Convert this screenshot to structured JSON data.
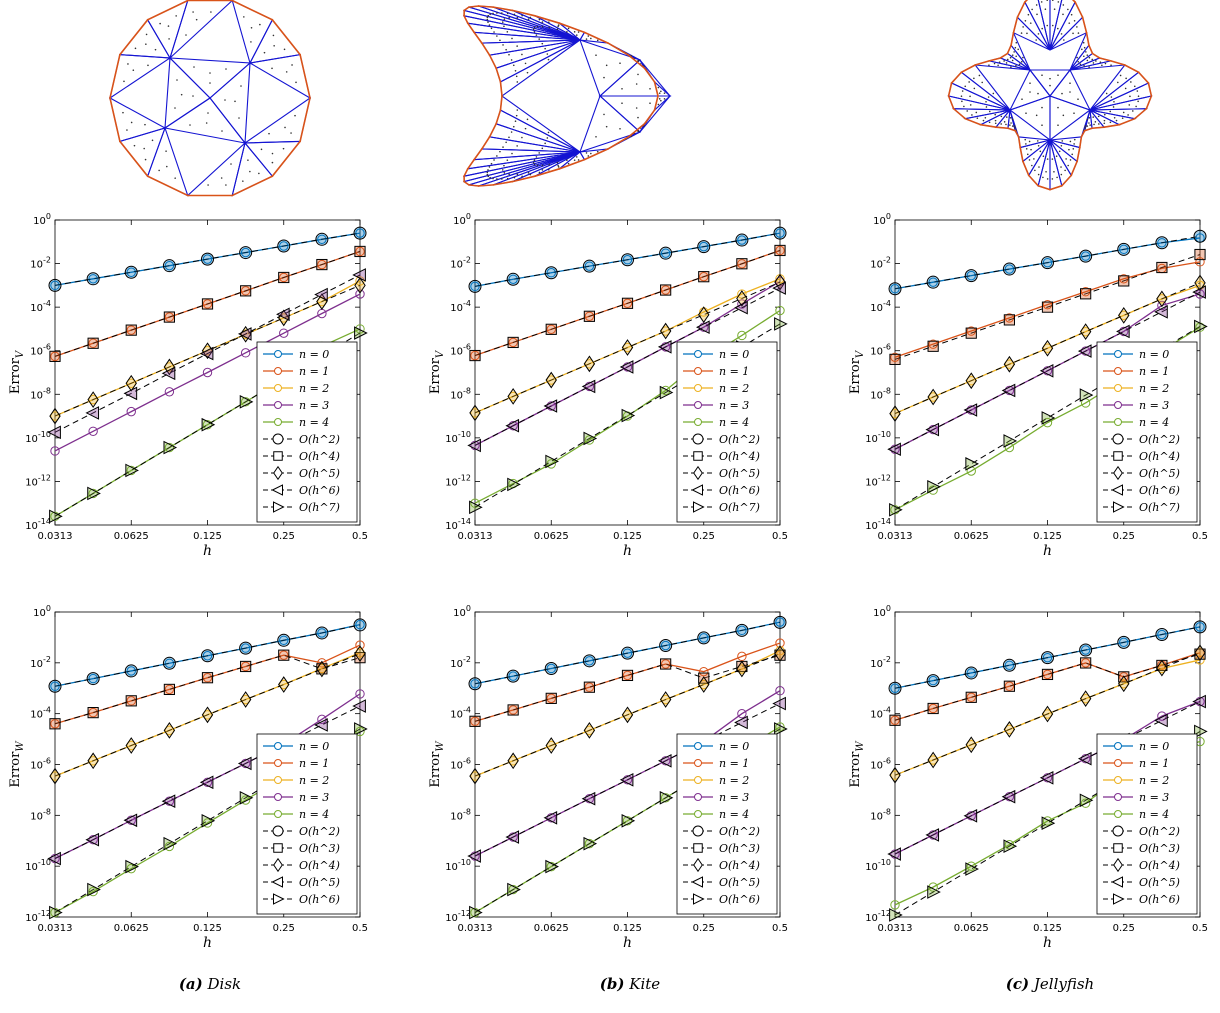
{
  "captions": [
    {
      "label": "(a)",
      "text": "Disk"
    },
    {
      "label": "(b)",
      "text": "Kite"
    },
    {
      "label": "(c)",
      "text": "Jellyfish"
    }
  ],
  "colors": {
    "series": [
      "#0072BD",
      "#D95319",
      "#EDB120",
      "#7E2F8E",
      "#77AC30"
    ],
    "reference": "#000000",
    "mesh_edges": "#1414d2",
    "mesh_boundary": "#d95319",
    "mesh_nodes": "#333333"
  },
  "legend_series": [
    "n = 0",
    "n = 1",
    "n = 2",
    "n = 3",
    "n = 4"
  ],
  "legend_refs_V": [
    "O(h^2)",
    "O(h^4)",
    "O(h^5)",
    "O(h^6)",
    "O(h^7)"
  ],
  "legend_refs_W": [
    "O(h^2)",
    "O(h^3)",
    "O(h^4)",
    "O(h^5)",
    "O(h^6)"
  ],
  "ref_markers": [
    "circle",
    "square",
    "diamond",
    "triangle-left",
    "triangle-right"
  ],
  "chart_data": [
    {
      "type": "line",
      "domain": "Disk",
      "panel": "V",
      "xlabel": "h",
      "ylabel": "Error",
      "ylabel_sub": "V",
      "xscale": "log2",
      "yscale": "log10",
      "xlim": [
        0.03125,
        0.5
      ],
      "ylim": [
        1e-14,
        1
      ],
      "xticks": [
        "0.0313",
        "0.0625",
        "0.125",
        "0.25",
        "0.5"
      ],
      "yticks_exp": [
        0,
        -2,
        -4,
        -6,
        -8,
        -10,
        -12,
        -14
      ],
      "x": [
        0.03125,
        0.0442,
        0.0625,
        0.0884,
        0.125,
        0.1768,
        0.25,
        0.3536,
        0.5
      ],
      "series": [
        {
          "values": [
            0.001,
            0.002,
            0.004,
            0.008,
            0.016,
            0.032,
            0.064,
            0.13,
            0.25
          ]
        },
        {
          "values": [
            5.5e-07,
            2.2e-06,
            8.8e-06,
            3.5e-05,
            0.00014,
            0.00056,
            0.0023,
            0.009,
            0.036
          ]
        },
        {
          "values": [
            1e-09,
            5.7e-09,
            3.2e-08,
            1.8e-07,
            1e-06,
            5.7e-06,
            3.2e-05,
            0.00018,
            0.0016
          ]
        },
        {
          "values": [
            2.5e-11,
            2e-10,
            1.6e-09,
            1.3e-08,
            1e-07,
            8e-07,
            6.4e-06,
            5.1e-05,
            0.0004
          ]
        },
        {
          "values": [
            2.5e-14,
            2.8e-13,
            3.2e-12,
            3.6e-11,
            4e-10,
            4.5e-09,
            5.1e-08,
            1.6e-06,
            1e-05
          ]
        }
      ],
      "reference": [
        {
          "values": [
            0.001,
            0.002,
            0.004,
            0.008,
            0.016,
            0.032,
            0.064,
            0.13,
            0.25
          ]
        },
        {
          "values": [
            5.5e-07,
            2.2e-06,
            8.8e-06,
            3.5e-05,
            0.00014,
            0.00056,
            0.0023,
            0.009,
            0.036
          ]
        },
        {
          "values": [
            1e-09,
            5.7e-09,
            3.2e-08,
            1.8e-07,
            1e-06,
            5.7e-06,
            3.2e-05,
            0.00018,
            0.001
          ]
        },
        {
          "values": [
            1.8e-10,
            1.4e-09,
            1.1e-08,
            9.2e-08,
            7.4e-07,
            5.9e-06,
            4.7e-05,
            0.00038,
            0.003
          ]
        },
        {
          "values": [
            2.5e-14,
            2.8e-13,
            3.2e-12,
            3.6e-11,
            4e-10,
            4.5e-09,
            5.1e-08,
            5.8e-07,
            6.5e-06
          ]
        }
      ],
      "legend": "lower-right"
    },
    {
      "type": "line",
      "domain": "Kite",
      "panel": "V",
      "xlabel": "h",
      "ylabel": "Error",
      "ylabel_sub": "V",
      "xscale": "log2",
      "yscale": "log10",
      "xlim": [
        0.03125,
        0.5
      ],
      "ylim": [
        1e-14,
        1
      ],
      "xticks": [
        "0.0313",
        "0.0625",
        "0.125",
        "0.25",
        "0.5"
      ],
      "yticks_exp": [
        0,
        -2,
        -4,
        -6,
        -8,
        -10,
        -12,
        -14
      ],
      "x": [
        0.03125,
        0.0442,
        0.0625,
        0.0884,
        0.125,
        0.1768,
        0.25,
        0.3536,
        0.5
      ],
      "series": [
        {
          "values": [
            0.0009,
            0.0019,
            0.0038,
            0.0076,
            0.015,
            0.03,
            0.06,
            0.12,
            0.25
          ]
        },
        {
          "values": [
            6e-07,
            2.4e-06,
            9.6e-06,
            3.8e-05,
            0.00015,
            0.00061,
            0.0025,
            0.0098,
            0.04
          ]
        },
        {
          "values": [
            1.4e-09,
            8e-09,
            4.5e-08,
            2.5e-07,
            1.4e-06,
            8e-06,
            6e-05,
            0.0004,
            0.002
          ]
        },
        {
          "values": [
            4.5e-11,
            3.6e-10,
            2.9e-09,
            2.3e-08,
            1.8e-07,
            1.5e-06,
            1.2e-05,
            0.00014,
            0.0015
          ]
        },
        {
          "values": [
            1e-13,
            8e-13,
            6.4e-12,
            8e-11,
            1e-09,
            1.5e-08,
            4e-07,
            5e-06,
            7e-05
          ]
        }
      ],
      "reference": [
        {
          "values": [
            0.0009,
            0.0019,
            0.0038,
            0.0076,
            0.015,
            0.03,
            0.06,
            0.12,
            0.25
          ]
        },
        {
          "values": [
            6e-07,
            2.4e-06,
            9.6e-06,
            3.8e-05,
            0.00015,
            0.00061,
            0.0025,
            0.0098,
            0.04
          ]
        },
        {
          "values": [
            1.4e-09,
            8e-09,
            4.5e-08,
            2.5e-07,
            1.4e-06,
            8e-06,
            4.5e-05,
            0.00025,
            0.0014
          ]
        },
        {
          "values": [
            4.5e-11,
            3.6e-10,
            2.9e-09,
            2.3e-08,
            1.8e-07,
            1.5e-06,
            1.2e-05,
            9.4e-05,
            0.00075
          ]
        },
        {
          "values": [
            6.5e-14,
            7.3e-13,
            8.3e-12,
            9.4e-11,
            1.06e-09,
            1.2e-08,
            1.35e-07,
            1.5e-06,
            1.7e-05
          ]
        }
      ],
      "legend": "lower-right"
    },
    {
      "type": "line",
      "domain": "Jellyfish",
      "panel": "V",
      "xlabel": "h",
      "ylabel": "Error",
      "ylabel_sub": "V",
      "xscale": "log2",
      "yscale": "log10",
      "xlim": [
        0.03125,
        0.5
      ],
      "ylim": [
        1e-14,
        1
      ],
      "xticks": [
        "0.0313",
        "0.0625",
        "0.125",
        "0.25",
        "0.5"
      ],
      "yticks_exp": [
        0,
        -2,
        -4,
        -6,
        -8,
        -10,
        -12,
        -14
      ],
      "x": [
        0.03125,
        0.0442,
        0.0625,
        0.0884,
        0.125,
        0.1768,
        0.25,
        0.3536,
        0.5
      ],
      "series": [
        {
          "values": [
            0.0007,
            0.0014,
            0.0028,
            0.0056,
            0.011,
            0.022,
            0.045,
            0.09,
            0.15
          ]
        },
        {
          "values": [
            5e-07,
            2e-06,
            8e-06,
            3.2e-05,
            0.00013,
            0.00051,
            0.002,
            0.006,
            0.012
          ]
        },
        {
          "values": [
            1.3e-09,
            7.5e-09,
            4.2e-08,
            2.4e-07,
            1.3e-06,
            7.5e-06,
            4.2e-05,
            0.00024,
            0.001
          ]
        },
        {
          "values": [
            3e-11,
            2.4e-10,
            1.9e-09,
            1.5e-08,
            1.2e-07,
            9.6e-07,
            7.7e-06,
            0.00012,
            0.0004
          ]
        },
        {
          "values": [
            5e-14,
            4e-13,
            3e-12,
            3.6e-11,
            5e-10,
            4e-09,
            5e-08,
            1e-06,
            1.2e-05
          ]
        }
      ],
      "reference": [
        {
          "values": [
            0.0007,
            0.0014,
            0.0028,
            0.0056,
            0.011,
            0.022,
            0.045,
            0.09,
            0.18
          ]
        },
        {
          "values": [
            4e-07,
            1.6e-06,
            6.4e-06,
            2.6e-05,
            0.0001,
            0.00041,
            0.0016,
            0.0066,
            0.026
          ]
        },
        {
          "values": [
            1.3e-09,
            7.5e-09,
            4.2e-08,
            2.4e-07,
            1.3e-06,
            7.5e-06,
            4.2e-05,
            0.00024,
            0.0013
          ]
        },
        {
          "values": [
            3e-11,
            2.4e-10,
            1.9e-09,
            1.5e-08,
            1.2e-07,
            9.6e-07,
            7.7e-06,
            6.1e-05,
            0.00049
          ]
        },
        {
          "values": [
            5e-14,
            5.7e-13,
            6.4e-12,
            7.2e-11,
            8.2e-10,
            9.2e-09,
            1e-07,
            1.2e-06,
            1.3e-05
          ]
        }
      ],
      "legend": "lower-right"
    },
    {
      "type": "line",
      "domain": "Disk",
      "panel": "W",
      "xlabel": "h",
      "ylabel": "Error",
      "ylabel_sub": "W",
      "xscale": "log2",
      "yscale": "log10",
      "xlim": [
        0.03125,
        0.5
      ],
      "ylim": [
        1e-12,
        1
      ],
      "xticks": [
        "0.0313",
        "0.0625",
        "0.125",
        "0.25",
        "0.5"
      ],
      "yticks_exp": [
        0,
        -2,
        -4,
        -6,
        -8,
        -10,
        -12
      ],
      "x": [
        0.03125,
        0.0442,
        0.0625,
        0.0884,
        0.125,
        0.1768,
        0.25,
        0.3536,
        0.5
      ],
      "series": [
        {
          "values": [
            0.0012,
            0.0024,
            0.0048,
            0.0096,
            0.019,
            0.038,
            0.077,
            0.15,
            0.32
          ]
        },
        {
          "values": [
            4e-05,
            0.00011,
            0.00032,
            0.0009,
            0.0026,
            0.0072,
            0.02,
            0.01,
            0.05
          ]
        },
        {
          "values": [
            3.5e-07,
            1.4e-06,
            5.6e-06,
            2.2e-05,
            9e-05,
            0.00036,
            0.0014,
            0.006,
            0.025
          ]
        },
        {
          "values": [
            2e-10,
            1.1e-09,
            6.4e-09,
            3.6e-08,
            2e-07,
            1.1e-06,
            6.4e-06,
            6e-05,
            0.0006
          ]
        },
        {
          "values": [
            1.5e-12,
            1e-11,
            8e-11,
            6e-10,
            5e-09,
            4e-08,
            3.2e-07,
            2.5e-06,
            2e-05
          ]
        }
      ],
      "reference": [
        {
          "values": [
            0.0012,
            0.0024,
            0.0048,
            0.0096,
            0.019,
            0.038,
            0.077,
            0.15,
            0.31
          ]
        },
        {
          "values": [
            4e-05,
            0.00011,
            0.00032,
            0.0009,
            0.0026,
            0.0072,
            0.02,
            0.0058,
            0.016
          ]
        },
        {
          "values": [
            3.5e-07,
            1.4e-06,
            5.6e-06,
            2.2e-05,
            9e-05,
            0.00036,
            0.0014,
            0.0057,
            0.023
          ]
        },
        {
          "values": [
            2e-10,
            1.1e-09,
            6.4e-09,
            3.6e-08,
            2e-07,
            1.1e-06,
            6.4e-06,
            3.6e-05,
            0.0002
          ]
        },
        {
          "values": [
            1.5e-12,
            1.2e-11,
            9.6e-11,
            7.7e-10,
            6.1e-09,
            4.9e-08,
            3.9e-07,
            3.1e-06,
            2.5e-05
          ]
        }
      ],
      "legend": "lower-right"
    },
    {
      "type": "line",
      "domain": "Kite",
      "panel": "W",
      "xlabel": "h",
      "ylabel": "Error",
      "ylabel_sub": "W",
      "xscale": "log2",
      "yscale": "log10",
      "xlim": [
        0.03125,
        0.5
      ],
      "ylim": [
        1e-12,
        1
      ],
      "xticks": [
        "0.0313",
        "0.0625",
        "0.125",
        "0.25",
        "0.5"
      ],
      "yticks_exp": [
        0,
        -2,
        -4,
        -6,
        -8,
        -10,
        -12
      ],
      "x": [
        0.03125,
        0.0442,
        0.0625,
        0.0884,
        0.125,
        0.1768,
        0.25,
        0.3536,
        0.5
      ],
      "series": [
        {
          "values": [
            0.0015,
            0.003,
            0.006,
            0.012,
            0.024,
            0.048,
            0.096,
            0.19,
            0.4
          ]
        },
        {
          "values": [
            5e-05,
            0.00014,
            0.0004,
            0.0011,
            0.0032,
            0.009,
            0.0045,
            0.018,
            0.06
          ]
        },
        {
          "values": [
            3.5e-07,
            1.4e-06,
            5.6e-06,
            2.2e-05,
            9e-05,
            0.00036,
            0.0014,
            0.0057,
            0.03
          ]
        },
        {
          "values": [
            2.5e-10,
            1.4e-09,
            8e-09,
            4.5e-08,
            2.5e-07,
            1.4e-06,
            8e-06,
            0.0001,
            0.0008
          ]
        },
        {
          "values": [
            1.5e-12,
            1.2e-11,
            9.6e-11,
            7.7e-10,
            6.1e-09,
            4.9e-08,
            3.9e-07,
            4e-06,
            3e-05
          ]
        }
      ],
      "reference": [
        {
          "values": [
            0.0015,
            0.003,
            0.006,
            0.012,
            0.024,
            0.048,
            0.096,
            0.19,
            0.39
          ]
        },
        {
          "values": [
            5e-05,
            0.00014,
            0.0004,
            0.0011,
            0.0032,
            0.009,
            0.0025,
            0.0072,
            0.02
          ]
        },
        {
          "values": [
            3.5e-07,
            1.4e-06,
            5.6e-06,
            2.2e-05,
            9e-05,
            0.00036,
            0.0014,
            0.0057,
            0.023
          ]
        },
        {
          "values": [
            2.5e-10,
            1.4e-09,
            8e-09,
            4.5e-08,
            2.5e-07,
            1.4e-06,
            8e-06,
            4.5e-05,
            0.00025
          ]
        },
        {
          "values": [
            1.5e-12,
            1.2e-11,
            9.6e-11,
            7.7e-10,
            6.1e-09,
            4.9e-08,
            3.9e-07,
            3.1e-06,
            2.5e-05
          ]
        }
      ],
      "legend": "lower-right"
    },
    {
      "type": "line",
      "domain": "Jellyfish",
      "panel": "W",
      "xlabel": "h",
      "ylabel": "Error",
      "ylabel_sub": "W",
      "xscale": "log2",
      "yscale": "log10",
      "xlim": [
        0.03125,
        0.5
      ],
      "ylim": [
        1e-12,
        1
      ],
      "xticks": [
        "0.0313",
        "0.0625",
        "0.125",
        "0.25",
        "0.5"
      ],
      "yticks_exp": [
        0,
        -2,
        -4,
        -6,
        -8,
        -10,
        -12
      ],
      "x": [
        0.03125,
        0.0442,
        0.0625,
        0.0884,
        0.125,
        0.1768,
        0.25,
        0.3536,
        0.5
      ],
      "series": [
        {
          "values": [
            0.001,
            0.002,
            0.004,
            0.008,
            0.016,
            0.032,
            0.064,
            0.13,
            0.26
          ]
        },
        {
          "values": [
            5.5e-05,
            0.00016,
            0.00044,
            0.0012,
            0.0035,
            0.0099,
            0.0028,
            0.008,
            0.025
          ]
        },
        {
          "values": [
            3.8e-07,
            1.5e-06,
            6e-06,
            2.4e-05,
            9.7e-05,
            0.00039,
            0.0015,
            0.006,
            0.013
          ]
        },
        {
          "values": [
            3e-10,
            1.7e-09,
            9.6e-09,
            5.4e-08,
            3e-07,
            1.7e-06,
            9.6e-06,
            8e-05,
            0.0003
          ]
        },
        {
          "values": [
            3e-12,
            1.5e-11,
            1e-10,
            7e-10,
            6e-09,
            3e-08,
            4e-07,
            3e-06,
            8e-06
          ]
        }
      ],
      "reference": [
        {
          "values": [
            0.001,
            0.002,
            0.004,
            0.008,
            0.016,
            0.032,
            0.064,
            0.13,
            0.26
          ]
        },
        {
          "values": [
            5.5e-05,
            0.00016,
            0.00044,
            0.0012,
            0.0035,
            0.0099,
            0.0028,
            0.0079,
            0.022
          ]
        },
        {
          "values": [
            3.8e-07,
            1.5e-06,
            6e-06,
            2.4e-05,
            9.7e-05,
            0.00039,
            0.0015,
            0.0062,
            0.025
          ]
        },
        {
          "values": [
            3e-10,
            1.7e-09,
            9.6e-09,
            5.4e-08,
            3e-07,
            1.7e-06,
            9.6e-06,
            5.4e-05,
            0.0003
          ]
        },
        {
          "values": [
            1.2e-12,
            9.6e-12,
            7.7e-11,
            6.1e-10,
            4.9e-09,
            3.9e-08,
            3.1e-07,
            2.5e-06,
            2e-05
          ]
        }
      ],
      "legend": "lower-right"
    }
  ]
}
